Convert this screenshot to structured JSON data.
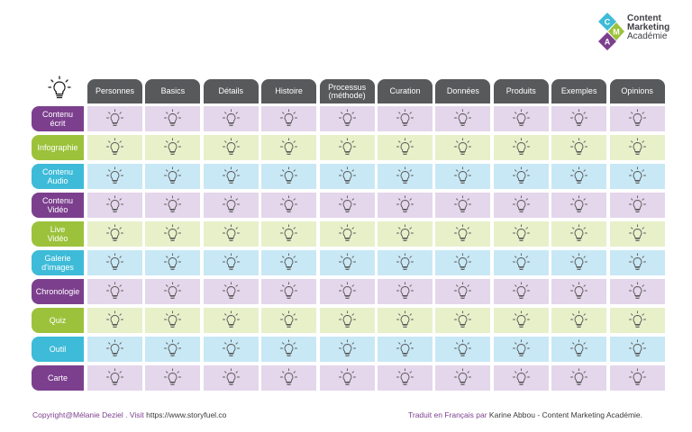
{
  "logo": {
    "letters": [
      "C",
      "M",
      "A"
    ],
    "line1": "Content",
    "line2": "Marketing",
    "line3": "Académie",
    "colors": {
      "C": "#3dbbd8",
      "M": "#9cc23b",
      "A": "#7c3f8e"
    }
  },
  "corner_icon": "lightbulb-icon",
  "columns": [
    "Personnes",
    "Basics",
    "Détails",
    "Histoire",
    "Processus\n(méthode)",
    "Curation",
    "Données",
    "Produits",
    "Exemples",
    "Opinions"
  ],
  "rows": [
    {
      "label": "Contenu\nécrit",
      "color": "purple"
    },
    {
      "label": "Infographie",
      "color": "green"
    },
    {
      "label": "Contenu\nAudio",
      "color": "blue"
    },
    {
      "label": "Contenu\nVidéo",
      "color": "purple"
    },
    {
      "label": "Live\nVidéo",
      "color": "green"
    },
    {
      "label": "Galerie\nd'images",
      "color": "blue"
    },
    {
      "label": "Chronologie",
      "color": "purple"
    },
    {
      "label": "Quiz",
      "color": "green"
    },
    {
      "label": "Outil",
      "color": "blue"
    },
    {
      "label": "Carte",
      "color": "purple"
    }
  ],
  "cell_icon": "lightbulb-icon",
  "palette": {
    "purple": {
      "header": "#7c3f8e",
      "cell": "#e4d6eb"
    },
    "green": {
      "header": "#9cc23b",
      "cell": "#e7f0c9"
    },
    "blue": {
      "header": "#3dbbd8",
      "cell": "#c8e8f5"
    },
    "column_header": "#58595b"
  },
  "footer": {
    "left_prefix": "Copyright@Mélanie Deziel . Visit ",
    "left_url": "https://www.storyfuel.co",
    "right_prefix": "Traduit en Français par ",
    "right_name": "Karine Abbou - Content Marketing Académie."
  }
}
